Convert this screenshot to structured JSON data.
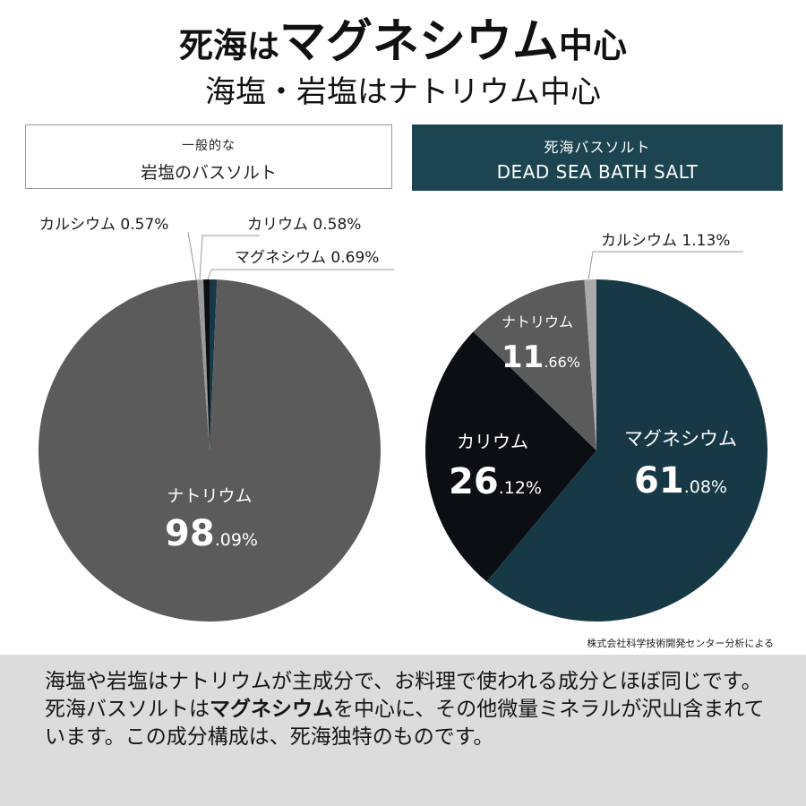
{
  "header": {
    "title_line1": {
      "pre": "死海",
      "small": "は",
      "strong": "マグネシウム",
      "post": "中心"
    },
    "title_line2": "海塩・岩塩はナトリウム中心"
  },
  "colors": {
    "sodium_gray": "#5b5b5b",
    "calcium_gray": "#aaaaaa",
    "potassium_black": "#0b0f14",
    "magnesium_teal": "#173946",
    "label_box_teal": "#1d4551",
    "bottom_band": "#dcdcdc"
  },
  "chart_data": [
    {
      "type": "pie",
      "header_line1": "一般的な",
      "header_line2": "岩塩のバスソルト",
      "slices": [
        {
          "name": "マグネシウム",
          "value": 0.69,
          "color": "#173946"
        },
        {
          "name": "ナトリウム",
          "value": 98.09,
          "color": "#5b5b5b"
        },
        {
          "name": "カルシウム",
          "value": 0.57,
          "color": "#9a9a9a"
        },
        {
          "name": "カリウム",
          "value": 0.58,
          "color": "#0b0f14"
        }
      ],
      "labels": {
        "calcium": "カルシウム 0.57%",
        "potassium": "カリウム 0.58%",
        "magnesium": "マグネシウム 0.69%",
        "sodium_name": "ナトリウム",
        "sodium_int": "98",
        "sodium_dec": ".09%"
      }
    },
    {
      "type": "pie",
      "header_line1": "死海バスソルト",
      "header_line2": "DEAD SEA BATH SALT",
      "slices": [
        {
          "name": "マグネシウム",
          "value": 61.08,
          "color": "#173946"
        },
        {
          "name": "カリウム",
          "value": 26.12,
          "color": "#0b0f14"
        },
        {
          "name": "ナトリウム",
          "value": 11.66,
          "color": "#5b5b5b"
        },
        {
          "name": "カルシウム",
          "value": 1.13,
          "color": "#aaaaaa"
        }
      ],
      "labels": {
        "calcium": "カルシウム  1.13%",
        "sodium_name": "ナトリウム",
        "sodium_int": "11",
        "sodium_dec": ".66%",
        "potassium_name": "カリウム",
        "potassium_int": "26",
        "potassium_dec": ".12%",
        "magnesium_name": "マグネシウム",
        "magnesium_int": "61",
        "magnesium_dec": ".08%"
      }
    }
  ],
  "source_note": "株式会社科学技術開発センター分析による",
  "description": {
    "line1": "海塩や岩塩はナトリウムが主成分で、お料理で使われる成分とほぼ同じです。",
    "line2_pre": "死海バスソルトは",
    "line2_strong": "マグネシウム",
    "line2_post": "を中心に、その他微量ミネラルが沢山含まれています。この成分構成は、死海独特のものです。"
  }
}
